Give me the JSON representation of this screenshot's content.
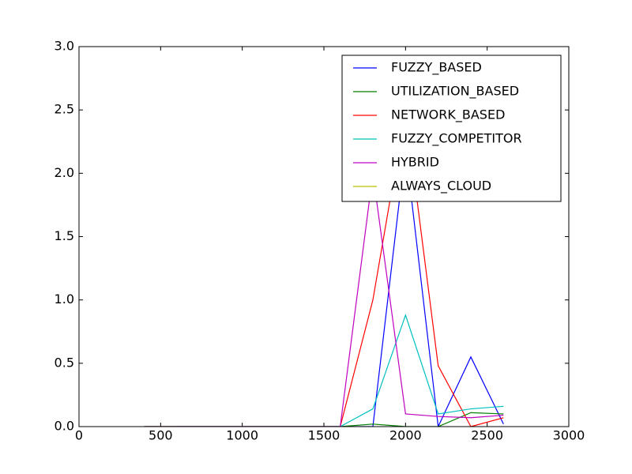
{
  "chart_data": {
    "type": "line",
    "x": [
      400,
      600,
      800,
      1000,
      1200,
      1400,
      1600,
      1800,
      2000,
      2200,
      2400,
      2600
    ],
    "series": [
      {
        "name": "FUZZY_BASED",
        "color": "#0000ff",
        "values": [
          0,
          0,
          0,
          0,
          0,
          0,
          0,
          0,
          2.2,
          0,
          0.55,
          0.02
        ]
      },
      {
        "name": "UTILIZATION_BASED",
        "color": "#008000",
        "values": [
          0,
          0,
          0,
          0,
          0,
          0,
          0,
          0.02,
          0,
          0,
          0.11,
          0.1
        ]
      },
      {
        "name": "NETWORK_BASED",
        "color": "#ff0000",
        "values": [
          0,
          0,
          0,
          0,
          0,
          0,
          0,
          1.0,
          2.5,
          0.48,
          0,
          0.07
        ]
      },
      {
        "name": "FUZZY_COMPETITOR",
        "color": "#00bfbf",
        "values": [
          0,
          0,
          0,
          0,
          0,
          0,
          0,
          0.14,
          0.88,
          0.1,
          0.14,
          0.16
        ]
      },
      {
        "name": "HYBRID",
        "color": "#bf00bf",
        "values": [
          0,
          0,
          0,
          0,
          0,
          0,
          0,
          2.0,
          0.1,
          0.08,
          0.07,
          0.09
        ]
      },
      {
        "name": "ALWAYS_CLOUD",
        "color": "#bfbf00",
        "values": [
          0,
          0,
          null,
          null,
          null,
          null,
          null,
          null,
          null,
          null,
          null,
          null
        ]
      }
    ],
    "xlim": [
      0,
      3000
    ],
    "xticks": [
      0,
      500,
      1000,
      1500,
      2000,
      2500,
      3000
    ],
    "ylim": [
      0,
      3.0
    ],
    "yticks": [
      {
        "value": 0,
        "label": "0.0"
      },
      {
        "value": 0.5,
        "label": "0.5"
      },
      {
        "value": 1.0,
        "label": "1.0"
      },
      {
        "value": 1.5,
        "label": "1.5"
      },
      {
        "value": 2.0,
        "label": "2.0"
      },
      {
        "value": 2.5,
        "label": "2.5"
      },
      {
        "value": 3.0,
        "label": "3.0"
      }
    ],
    "legend": "upper right"
  }
}
